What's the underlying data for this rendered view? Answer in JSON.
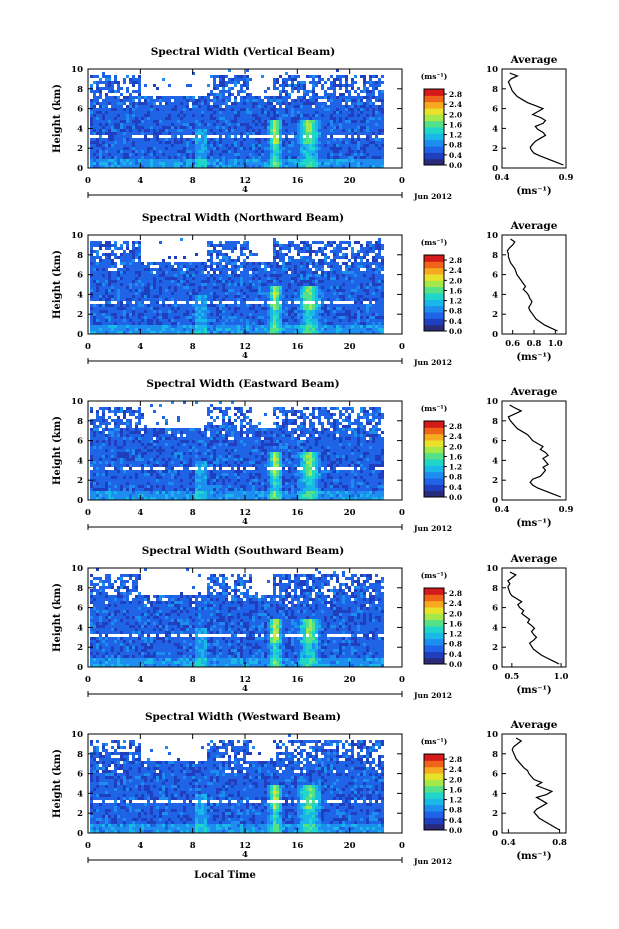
{
  "colors": {
    "scale": [
      "#2a2a7a",
      "#1f3fbf",
      "#1f64e6",
      "#1d8ef0",
      "#19b8e8",
      "#20d6c8",
      "#55e08a",
      "#a4e84a",
      "#e9e22a",
      "#f7a91f",
      "#f0641a",
      "#d41a1a"
    ]
  },
  "date_label": "Jun 2012",
  "xlabel_bottom": "Local Time",
  "chart_data": [
    {
      "type": "heatmap",
      "title": "Spectral Width (Vertical Beam)",
      "ylabel": "Height (km)",
      "x_ticks": [
        "0",
        "4",
        "8",
        "12",
        "16",
        "20",
        "0"
      ],
      "x_range": [
        0,
        24
      ],
      "date_tick": "4",
      "y_ticks": [
        "0",
        "2",
        "4",
        "6",
        "8",
        "10"
      ],
      "y_range": [
        0,
        10
      ],
      "colorbar": {
        "unit": "(ms⁻¹)",
        "ticks": [
          "0.0",
          "0.4",
          "0.8",
          "1.2",
          "1.6",
          "2.0",
          "2.4",
          "2.8"
        ],
        "range": [
          0,
          3.0
        ]
      },
      "average": {
        "title": "Average",
        "xlabel": "(ms⁻¹)",
        "x_ticks": [
          "0.4",
          "0.9"
        ],
        "x_range": [
          0.4,
          0.9
        ],
        "height": [
          0.3,
          0.6,
          0.9,
          1.2,
          1.5,
          1.8,
          2.1,
          2.4,
          2.7,
          3.0,
          3.3,
          3.6,
          3.9,
          4.2,
          4.5,
          4.8,
          5.1,
          5.4,
          5.7,
          6.0,
          6.3,
          6.6,
          6.9,
          7.2,
          7.5,
          7.8,
          8.1,
          8.4,
          8.7,
          9.0,
          9.3,
          9.6
        ],
        "value": [
          0.88,
          0.82,
          0.76,
          0.7,
          0.65,
          0.63,
          0.62,
          0.64,
          0.66,
          0.7,
          0.74,
          0.72,
          0.68,
          0.66,
          0.72,
          0.74,
          0.7,
          0.64,
          0.68,
          0.72,
          0.66,
          0.6,
          0.56,
          0.52,
          0.5,
          0.48,
          0.47,
          0.46,
          0.45,
          0.47,
          0.52,
          0.46
        ]
      }
    },
    {
      "type": "heatmap",
      "title": "Spectral Width (Northward Beam)",
      "ylabel": "Height (km)",
      "x_ticks": [
        "0",
        "4",
        "8",
        "12",
        "16",
        "20",
        "0"
      ],
      "x_range": [
        0,
        24
      ],
      "date_tick": "4",
      "y_ticks": [
        "0",
        "2",
        "4",
        "6",
        "8",
        "10"
      ],
      "y_range": [
        0,
        10
      ],
      "colorbar": {
        "unit": "(ms⁻¹)",
        "ticks": [
          "0.0",
          "0.4",
          "0.8",
          "1.2",
          "1.6",
          "2.0",
          "2.4",
          "2.8"
        ],
        "range": [
          0,
          3.0
        ]
      },
      "average": {
        "title": "Average",
        "xlabel": "(ms⁻¹)",
        "x_ticks": [
          "0.6",
          "0.8",
          "1.0"
        ],
        "x_range": [
          0.5,
          1.1
        ],
        "height": [
          0.3,
          0.6,
          0.9,
          1.2,
          1.5,
          1.8,
          2.1,
          2.4,
          2.7,
          3.0,
          3.3,
          3.6,
          3.9,
          4.2,
          4.5,
          4.8,
          5.1,
          5.4,
          5.7,
          6.0,
          6.3,
          6.6,
          6.9,
          7.2,
          7.5,
          7.8,
          8.1,
          8.4,
          8.7,
          9.0,
          9.3,
          9.6
        ],
        "value": [
          1.02,
          0.96,
          0.9,
          0.86,
          0.82,
          0.8,
          0.78,
          0.76,
          0.75,
          0.77,
          0.78,
          0.76,
          0.75,
          0.73,
          0.7,
          0.72,
          0.7,
          0.68,
          0.66,
          0.64,
          0.63,
          0.62,
          0.6,
          0.58,
          0.57,
          0.56,
          0.56,
          0.55,
          0.57,
          0.6,
          0.62,
          0.58
        ]
      }
    },
    {
      "type": "heatmap",
      "title": "Spectral Width (Eastward Beam)",
      "ylabel": "Height (km)",
      "x_ticks": [
        "0",
        "4",
        "8",
        "12",
        "16",
        "20",
        "0"
      ],
      "x_range": [
        0,
        24
      ],
      "date_tick": "4",
      "y_ticks": [
        "0",
        "2",
        "4",
        "6",
        "8",
        "10"
      ],
      "y_range": [
        0,
        10
      ],
      "colorbar": {
        "unit": "(ms⁻¹)",
        "ticks": [
          "0.0",
          "0.4",
          "0.8",
          "1.2",
          "1.6",
          "2.0",
          "2.4",
          "2.8"
        ],
        "range": [
          0,
          3.0
        ]
      },
      "average": {
        "title": "Average",
        "xlabel": "(ms⁻¹)",
        "x_ticks": [
          "0.4",
          "0.9"
        ],
        "x_range": [
          0.4,
          0.9
        ],
        "height": [
          0.3,
          0.6,
          0.9,
          1.2,
          1.5,
          1.8,
          2.1,
          2.4,
          2.7,
          3.0,
          3.3,
          3.6,
          3.9,
          4.2,
          4.5,
          4.8,
          5.1,
          5.4,
          5.7,
          6.0,
          6.3,
          6.6,
          6.9,
          7.2,
          7.5,
          7.8,
          8.1,
          8.4,
          8.7,
          9.0,
          9.3,
          9.6
        ],
        "value": [
          0.86,
          0.8,
          0.74,
          0.68,
          0.64,
          0.62,
          0.64,
          0.7,
          0.72,
          0.74,
          0.72,
          0.76,
          0.74,
          0.72,
          0.76,
          0.74,
          0.7,
          0.72,
          0.68,
          0.64,
          0.62,
          0.6,
          0.56,
          0.52,
          0.5,
          0.48,
          0.46,
          0.45,
          0.5,
          0.55,
          0.5,
          0.46
        ]
      }
    },
    {
      "type": "heatmap",
      "title": "Spectral Width (Southward Beam)",
      "ylabel": "Height (km)",
      "x_ticks": [
        "0",
        "4",
        "8",
        "12",
        "16",
        "20",
        "0"
      ],
      "x_range": [
        0,
        24
      ],
      "date_tick": "4",
      "y_ticks": [
        "0",
        "2",
        "4",
        "6",
        "8",
        "10"
      ],
      "y_range": [
        0,
        10
      ],
      "colorbar": {
        "unit": "(ms⁻¹)",
        "ticks": [
          "0.0",
          "0.4",
          "0.8",
          "1.2",
          "1.6",
          "2.0",
          "2.4",
          "2.8"
        ],
        "range": [
          0,
          3.0
        ]
      },
      "average": {
        "title": "Average",
        "xlabel": "(ms⁻¹)",
        "x_ticks": [
          "0.5",
          "1.0"
        ],
        "x_range": [
          0.4,
          1.05
        ],
        "height": [
          0.3,
          0.6,
          0.9,
          1.2,
          1.5,
          1.8,
          2.1,
          2.4,
          2.7,
          3.0,
          3.3,
          3.6,
          3.9,
          4.2,
          4.5,
          4.8,
          5.1,
          5.4,
          5.7,
          6.0,
          6.3,
          6.6,
          6.9,
          7.2,
          7.5,
          7.8,
          8.1,
          8.4,
          8.7,
          9.0,
          9.3,
          9.6
        ],
        "value": [
          0.98,
          0.92,
          0.86,
          0.8,
          0.76,
          0.72,
          0.7,
          0.68,
          0.72,
          0.75,
          0.72,
          0.7,
          0.73,
          0.7,
          0.66,
          0.68,
          0.64,
          0.6,
          0.62,
          0.58,
          0.56,
          0.6,
          0.55,
          0.5,
          0.48,
          0.47,
          0.46,
          0.48,
          0.46,
          0.5,
          0.54,
          0.48
        ]
      }
    },
    {
      "type": "heatmap",
      "title": "Spectral Width (Westward Beam)",
      "ylabel": "Height (km)",
      "x_ticks": [
        "0",
        "4",
        "8",
        "12",
        "16",
        "20",
        "0"
      ],
      "x_range": [
        0,
        24
      ],
      "date_tick": "4",
      "y_ticks": [
        "0",
        "2",
        "4",
        "6",
        "8",
        "10"
      ],
      "y_range": [
        0,
        10
      ],
      "colorbar": {
        "unit": "(ms⁻¹)",
        "ticks": [
          "0.0",
          "0.4",
          "0.8",
          "1.2",
          "1.6",
          "2.0",
          "2.4",
          "2.8"
        ],
        "range": [
          0,
          3.0
        ]
      },
      "average": {
        "title": "Average",
        "xlabel": "(ms⁻¹)",
        "x_ticks": [
          "0.4",
          "0.8"
        ],
        "x_range": [
          0.35,
          0.85
        ],
        "height": [
          0.3,
          0.6,
          0.9,
          1.2,
          1.5,
          1.8,
          2.1,
          2.4,
          2.7,
          3.0,
          3.3,
          3.6,
          3.9,
          4.2,
          4.5,
          4.8,
          5.1,
          5.4,
          5.7,
          6.0,
          6.3,
          6.6,
          6.9,
          7.2,
          7.5,
          7.8,
          8.1,
          8.4,
          8.7,
          9.0,
          9.3,
          9.6
        ],
        "value": [
          0.8,
          0.76,
          0.72,
          0.68,
          0.64,
          0.62,
          0.6,
          0.62,
          0.66,
          0.7,
          0.66,
          0.62,
          0.7,
          0.74,
          0.68,
          0.62,
          0.66,
          0.6,
          0.58,
          0.56,
          0.55,
          0.52,
          0.5,
          0.48,
          0.46,
          0.45,
          0.44,
          0.43,
          0.44,
          0.47,
          0.5,
          0.46
        ]
      }
    }
  ]
}
